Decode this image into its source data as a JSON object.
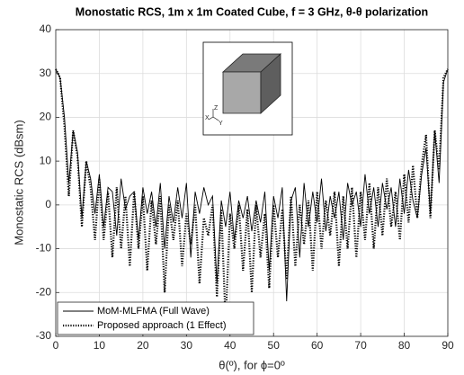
{
  "chart_data": {
    "type": "line",
    "title": "Monostatic RCS, 1m x 1m Coated Cube, f = 3 GHz, θ-θ polarization",
    "x_label": "θ(º), for ϕ=0º",
    "y_label": "Monostatic RCS (dBsm)",
    "x": [
      0,
      1,
      2,
      3,
      4,
      5,
      6,
      7,
      8,
      9,
      10,
      11,
      12,
      13,
      14,
      15,
      16,
      17,
      18,
      19,
      20,
      21,
      22,
      23,
      24,
      25,
      26,
      27,
      28,
      29,
      30,
      31,
      32,
      33,
      34,
      35,
      36,
      37,
      38,
      39,
      40,
      41,
      42,
      43,
      44,
      45,
      46,
      47,
      48,
      49,
      50,
      51,
      52,
      53,
      54,
      55,
      56,
      57,
      58,
      59,
      60,
      61,
      62,
      63,
      64,
      65,
      66,
      67,
      68,
      69,
      70,
      71,
      72,
      73,
      74,
      75,
      76,
      77,
      78,
      79,
      80,
      81,
      82,
      83,
      84,
      85,
      86,
      87,
      88,
      89,
      90
    ],
    "series": [
      {
        "name": "MoM-MLFMA (Full Wave)",
        "color": "#000000",
        "style": "solid",
        "values": [
          31,
          29,
          20,
          5,
          17,
          12,
          -3,
          10,
          6,
          -2,
          7,
          -5,
          4,
          3,
          -7,
          6,
          -1,
          2,
          3,
          -8,
          4,
          -2,
          3,
          -5,
          5,
          -10,
          2,
          -4,
          4,
          -3,
          5,
          -12,
          3,
          -2,
          4,
          0,
          2,
          -18,
          1,
          -5,
          3,
          -8,
          1,
          -3,
          2,
          -6,
          1,
          -4,
          3,
          -15,
          2,
          -3,
          4,
          -22,
          1,
          4,
          -12,
          5,
          -5,
          3,
          -4,
          6,
          -6,
          2,
          -3,
          3,
          -8,
          5,
          0,
          3,
          -5,
          7,
          -2,
          4,
          -5,
          5,
          -1,
          4,
          -5,
          6,
          -2,
          8,
          1,
          -3,
          7,
          13,
          -2,
          17,
          5,
          28,
          31
        ]
      },
      {
        "name": "Proposed approach (1 Effect)",
        "color": "#000000",
        "style": "dotted",
        "values": [
          31,
          29,
          18,
          2,
          17,
          11,
          -5,
          10,
          4,
          -8,
          6,
          -8,
          3,
          -12,
          4,
          -10,
          2,
          -14,
          3,
          -10,
          2,
          -15,
          1,
          -9,
          2,
          -20,
          0,
          -8,
          1,
          -14,
          -2,
          -9,
          0,
          -18,
          -3,
          -7,
          0,
          -21,
          -1,
          -27,
          -2,
          -10,
          0,
          -15,
          -1,
          -20,
          0,
          -12,
          -2,
          -19,
          0,
          -12,
          -1,
          -17,
          2,
          -14,
          0,
          -9,
          1,
          -15,
          3,
          -10,
          1,
          -7,
          3,
          -14,
          2,
          -10,
          4,
          -12,
          3,
          -8,
          5,
          -10,
          4,
          -7,
          6,
          -5,
          3,
          -8,
          7,
          -4,
          9,
          -3,
          9,
          16,
          -3,
          17,
          8,
          29,
          31
        ]
      }
    ],
    "xlim": [
      0,
      90
    ],
    "xticks": [
      0,
      10,
      20,
      30,
      40,
      50,
      60,
      70,
      80,
      90
    ],
    "ylim": [
      -30,
      40
    ],
    "yticks": [
      -30,
      -20,
      -10,
      0,
      10,
      20,
      30,
      40
    ],
    "grid": true,
    "legend_position": "lower-left",
    "annotations": [
      "Z",
      "X",
      "Y"
    ]
  }
}
